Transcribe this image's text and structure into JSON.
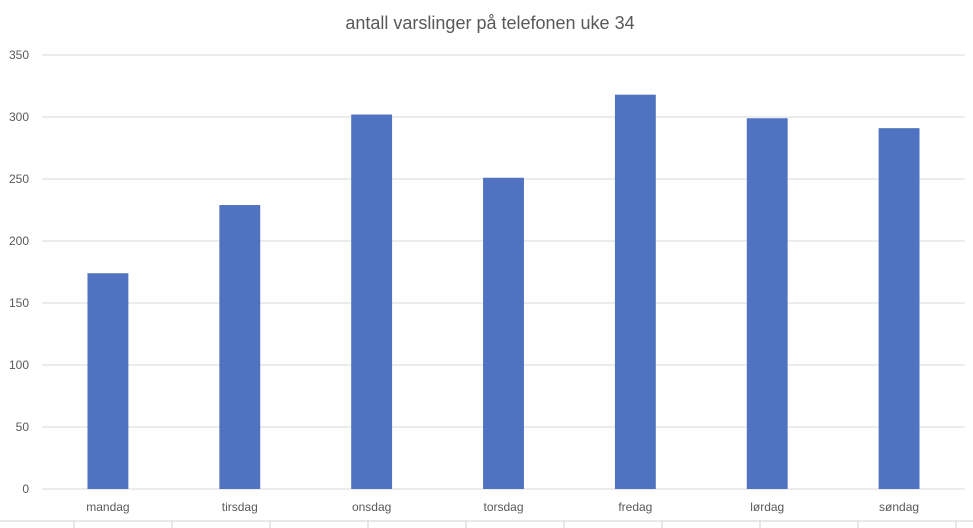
{
  "chart_data": {
    "type": "bar",
    "title": "antall varslinger på telefonen uke 34",
    "xlabel": "",
    "ylabel": "",
    "categories": [
      "mandag",
      "tirsdag",
      "onsdag",
      "torsdag",
      "fredag",
      "lørdag",
      "søndag"
    ],
    "values": [
      174,
      229,
      302,
      251,
      318,
      299,
      291
    ],
    "ylim": [
      0,
      350
    ],
    "yticks": [
      0,
      50,
      100,
      150,
      200,
      250,
      300,
      350
    ],
    "grid": true,
    "legend": "none",
    "bar_color": "#4f72c1"
  }
}
